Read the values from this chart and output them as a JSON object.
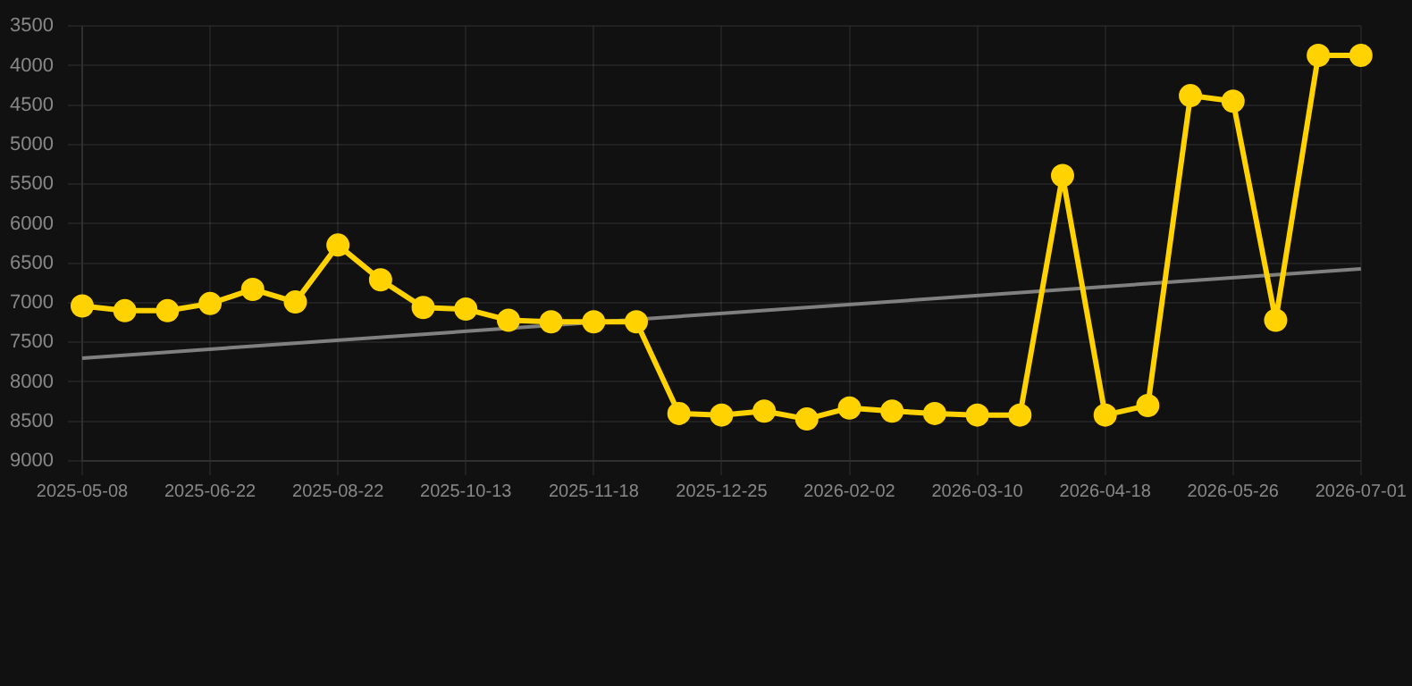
{
  "chart_data": {
    "type": "line",
    "categories": [
      "2025-05-08",
      null,
      null,
      "2025-06-22",
      null,
      null,
      "2025-08-22",
      null,
      null,
      "2025-10-13",
      null,
      null,
      "2025-11-18",
      null,
      null,
      "2025-12-25",
      null,
      null,
      "2026-02-02",
      null,
      null,
      "2026-03-10",
      null,
      null,
      "2026-04-18",
      null,
      null,
      "2026-05-26",
      null,
      null,
      "2026-07-01"
    ],
    "series": [
      {
        "type": "line",
        "color": "#ffd200",
        "marker": "circle",
        "values": [
          7040,
          7100,
          7100,
          7010,
          6830,
          6990,
          6270,
          6710,
          7060,
          7080,
          7220,
          7240,
          7240,
          7240,
          8400,
          8420,
          8370,
          8470,
          8330,
          8370,
          8400,
          8420,
          8420,
          5390,
          8420,
          8300,
          4380,
          4450,
          7220,
          3870,
          3870
        ]
      },
      {
        "type": "line",
        "color": "#808080",
        "marker": "none",
        "values": [
          7700,
          null,
          null,
          null,
          null,
          null,
          null,
          null,
          null,
          null,
          null,
          null,
          null,
          null,
          null,
          null,
          null,
          null,
          null,
          null,
          null,
          null,
          null,
          null,
          null,
          null,
          null,
          null,
          null,
          null,
          6570
        ]
      }
    ],
    "ylim": [
      9000,
      3500
    ],
    "yticks": [
      3500,
      4000,
      4500,
      5000,
      5500,
      6000,
      6500,
      7000,
      7500,
      8000,
      8500,
      9000
    ],
    "grid": true,
    "legend": false
  }
}
